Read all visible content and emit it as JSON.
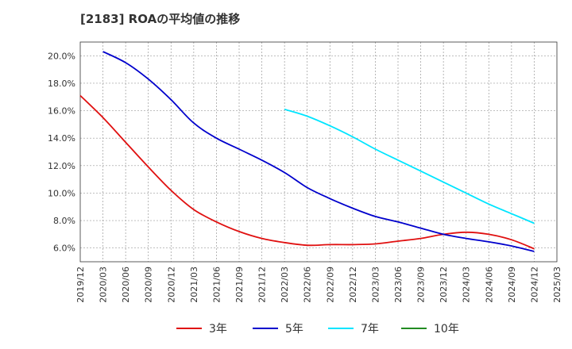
{
  "chart_data": {
    "type": "line",
    "title": "[2183]  ROAの平均値の推移",
    "xlabel": "",
    "ylabel": "",
    "ylim": [
      5.0,
      21.0
    ],
    "y_ticks": [
      "6.0%",
      "8.0%",
      "10.0%",
      "12.0%",
      "14.0%",
      "16.0%",
      "18.0%",
      "20.0%"
    ],
    "y_tick_values": [
      6,
      8,
      10,
      12,
      14,
      16,
      18,
      20
    ],
    "x": [
      "2019/12",
      "2020/03",
      "2020/06",
      "2020/09",
      "2020/12",
      "2021/03",
      "2021/06",
      "2021/09",
      "2021/12",
      "2022/03",
      "2022/06",
      "2022/09",
      "2022/12",
      "2023/03",
      "2023/06",
      "2023/09",
      "2023/12",
      "2024/03",
      "2024/06",
      "2024/09",
      "2024/12",
      "2025/03"
    ],
    "grid": true,
    "legend_position": "bottom",
    "series": [
      {
        "name": "3年",
        "color": "#e01010",
        "values": [
          17.1,
          15.5,
          13.7,
          11.9,
          10.2,
          8.8,
          7.9,
          7.2,
          6.7,
          6.4,
          6.2,
          6.25,
          6.25,
          6.3,
          6.5,
          6.7,
          7.0,
          7.15,
          7.0,
          6.6,
          5.95,
          null
        ]
      },
      {
        "name": "5年",
        "color": "#0000cc",
        "values": [
          null,
          20.3,
          19.5,
          18.3,
          16.8,
          15.1,
          14.0,
          13.2,
          12.4,
          11.5,
          10.4,
          9.6,
          8.9,
          8.3,
          7.9,
          7.45,
          7.0,
          6.7,
          6.45,
          6.15,
          5.75,
          null
        ]
      },
      {
        "name": "7年",
        "color": "#00e5ff",
        "values": [
          null,
          null,
          null,
          null,
          null,
          null,
          null,
          null,
          null,
          16.1,
          15.6,
          14.9,
          14.1,
          13.2,
          12.4,
          11.6,
          10.8,
          10.0,
          9.2,
          8.5,
          7.8,
          null
        ]
      },
      {
        "name": "10年",
        "color": "#228b22",
        "values": [
          null,
          null,
          null,
          null,
          null,
          null,
          null,
          null,
          null,
          null,
          null,
          null,
          null,
          null,
          null,
          null,
          null,
          null,
          null,
          null,
          null,
          null
        ]
      }
    ]
  }
}
